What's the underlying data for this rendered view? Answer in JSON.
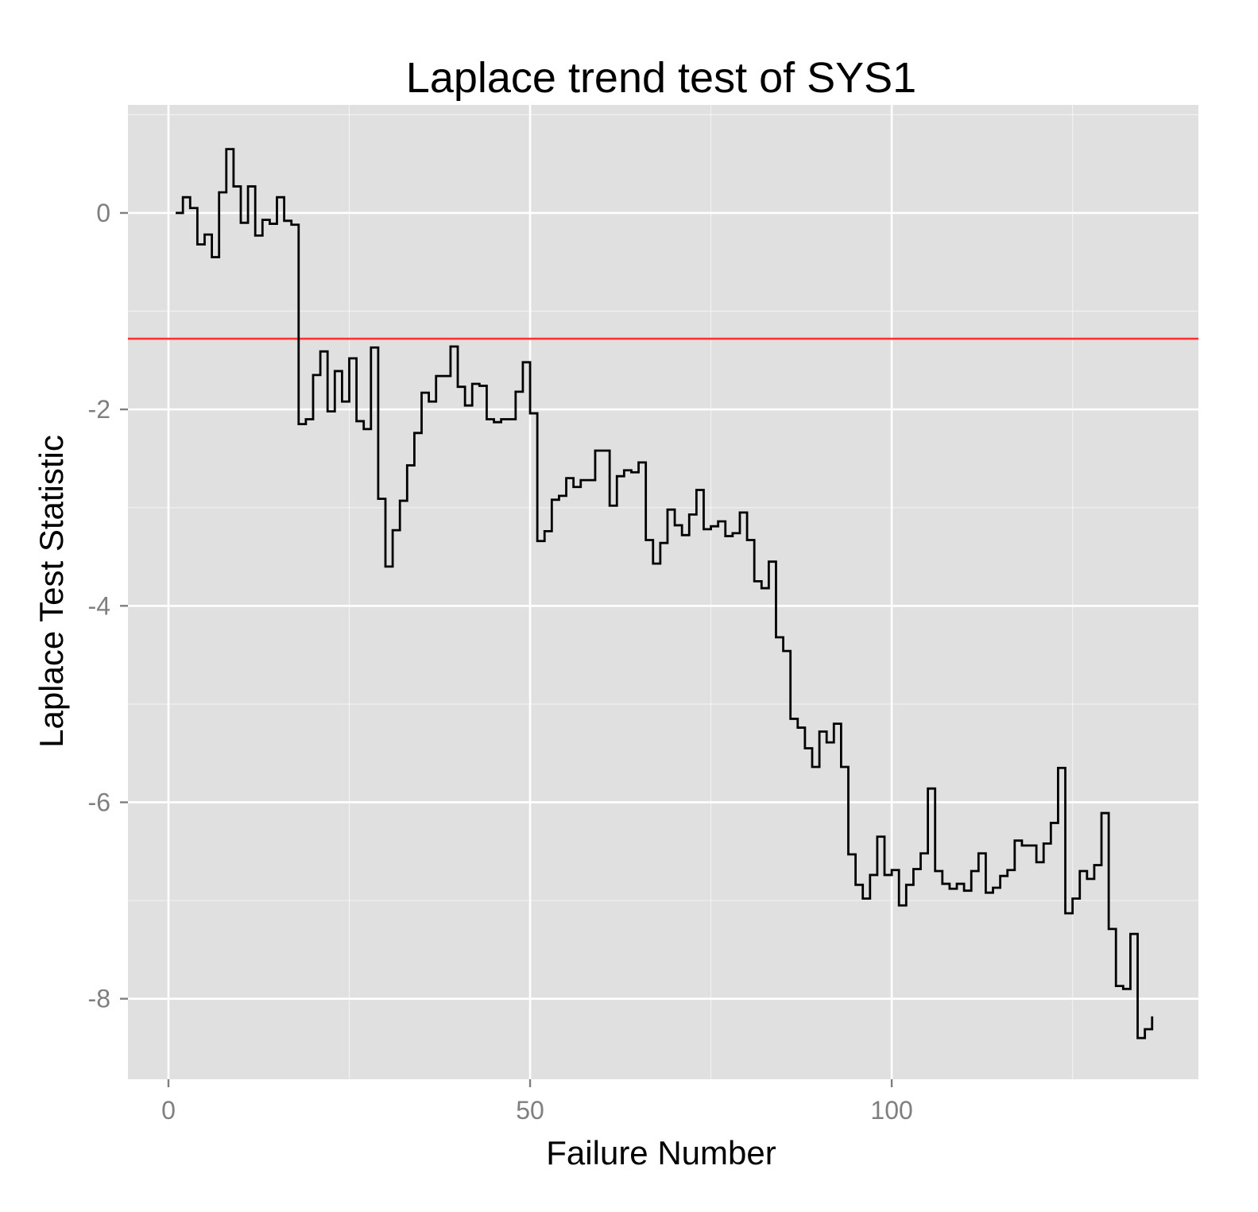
{
  "chart_data": {
    "type": "line",
    "subtype": "step",
    "title": "Laplace trend test of SYS1",
    "xlabel": "Failure Number",
    "ylabel": "Laplace Test Statistic",
    "xlim": [
      -5.6,
      142.4
    ],
    "ylim": [
      -8.82,
      1.1
    ],
    "x_ticks": [
      0,
      50,
      100
    ],
    "x_tick_labels": [
      "0",
      "50",
      "100"
    ],
    "y_ticks": [
      0,
      -2,
      -4,
      -6,
      -8
    ],
    "y_tick_labels": [
      "0",
      "-2",
      "-4",
      "-6",
      "-8"
    ],
    "grid": true,
    "background": "#e0e0e0",
    "grid_color": "#ffffff",
    "line_color": "#000000",
    "reference_line": {
      "y": -1.28,
      "color": "#ff3333"
    },
    "series": [
      {
        "x": [
          1,
          2,
          3,
          4,
          5,
          6,
          7,
          8,
          9,
          10,
          11,
          12,
          13,
          14,
          15,
          16,
          17,
          18,
          19,
          20,
          21,
          22,
          23,
          24,
          25,
          26,
          27,
          28,
          29,
          30,
          31,
          32,
          33,
          34,
          35,
          36,
          37,
          38,
          39,
          40,
          41,
          42,
          43,
          44,
          45,
          46,
          47,
          48,
          49,
          50,
          51,
          52,
          53,
          54,
          55,
          56,
          57,
          58,
          59,
          60,
          61,
          62,
          63,
          64,
          65,
          66,
          67,
          68,
          69,
          70,
          71,
          72,
          73,
          74,
          75,
          76,
          77,
          78,
          79,
          80,
          81,
          82,
          83,
          84,
          85,
          86,
          87,
          88,
          89,
          90,
          91,
          92,
          93,
          94,
          95,
          96,
          97,
          98,
          99,
          100,
          101,
          102,
          103,
          104,
          105,
          106,
          107,
          108,
          109,
          110,
          111,
          112,
          113,
          114,
          115,
          116,
          117,
          118,
          119,
          120,
          121,
          122,
          123,
          124,
          125,
          126,
          127,
          128,
          129,
          130,
          131,
          132,
          133,
          134,
          135,
          136
        ],
        "y": [
          0.0,
          0.16,
          0.05,
          -0.32,
          -0.22,
          -0.45,
          0.21,
          0.65,
          0.27,
          -0.1,
          0.27,
          -0.23,
          -0.07,
          -0.11,
          0.16,
          -0.08,
          -0.12,
          -2.15,
          -2.1,
          -1.65,
          -1.41,
          -2.02,
          -1.61,
          -1.92,
          -1.48,
          -2.12,
          -2.2,
          -1.37,
          -2.91,
          -3.6,
          -3.23,
          -2.93,
          -2.57,
          -2.24,
          -1.83,
          -1.92,
          -1.66,
          -1.66,
          -1.36,
          -1.77,
          -1.96,
          -1.74,
          -1.76,
          -2.1,
          -2.13,
          -2.1,
          -2.1,
          -1.82,
          -1.52,
          -2.04,
          -3.34,
          -3.24,
          -2.92,
          -2.88,
          -2.7,
          -2.79,
          -2.72,
          -2.72,
          -2.42,
          -2.42,
          -2.98,
          -2.68,
          -2.62,
          -2.64,
          -2.54,
          -3.33,
          -3.57,
          -3.36,
          -3.02,
          -3.18,
          -3.28,
          -3.07,
          -2.82,
          -3.22,
          -3.19,
          -3.14,
          -3.29,
          -3.26,
          -3.05,
          -3.33,
          -3.75,
          -3.82,
          -3.55,
          -4.32,
          -4.46,
          -5.15,
          -5.24,
          -5.45,
          -5.64,
          -5.28,
          -5.39,
          -5.2,
          -5.64,
          -6.53,
          -6.84,
          -6.98,
          -6.74,
          -6.35,
          -6.74,
          -6.69,
          -7.05,
          -6.84,
          -6.68,
          -6.52,
          -5.86,
          -6.7,
          -6.83,
          -6.88,
          -6.83,
          -6.9,
          -6.7,
          -6.52,
          -6.92,
          -6.87,
          -6.75,
          -6.69,
          -6.39,
          -6.44,
          -6.44,
          -6.61,
          -6.42,
          -6.21,
          -5.65,
          -7.13,
          -6.98,
          -6.7,
          -6.78,
          -6.64,
          -6.11,
          -7.29,
          -7.87,
          -7.9,
          -7.34,
          -8.4,
          -8.31,
          -8.18
        ]
      }
    ]
  }
}
